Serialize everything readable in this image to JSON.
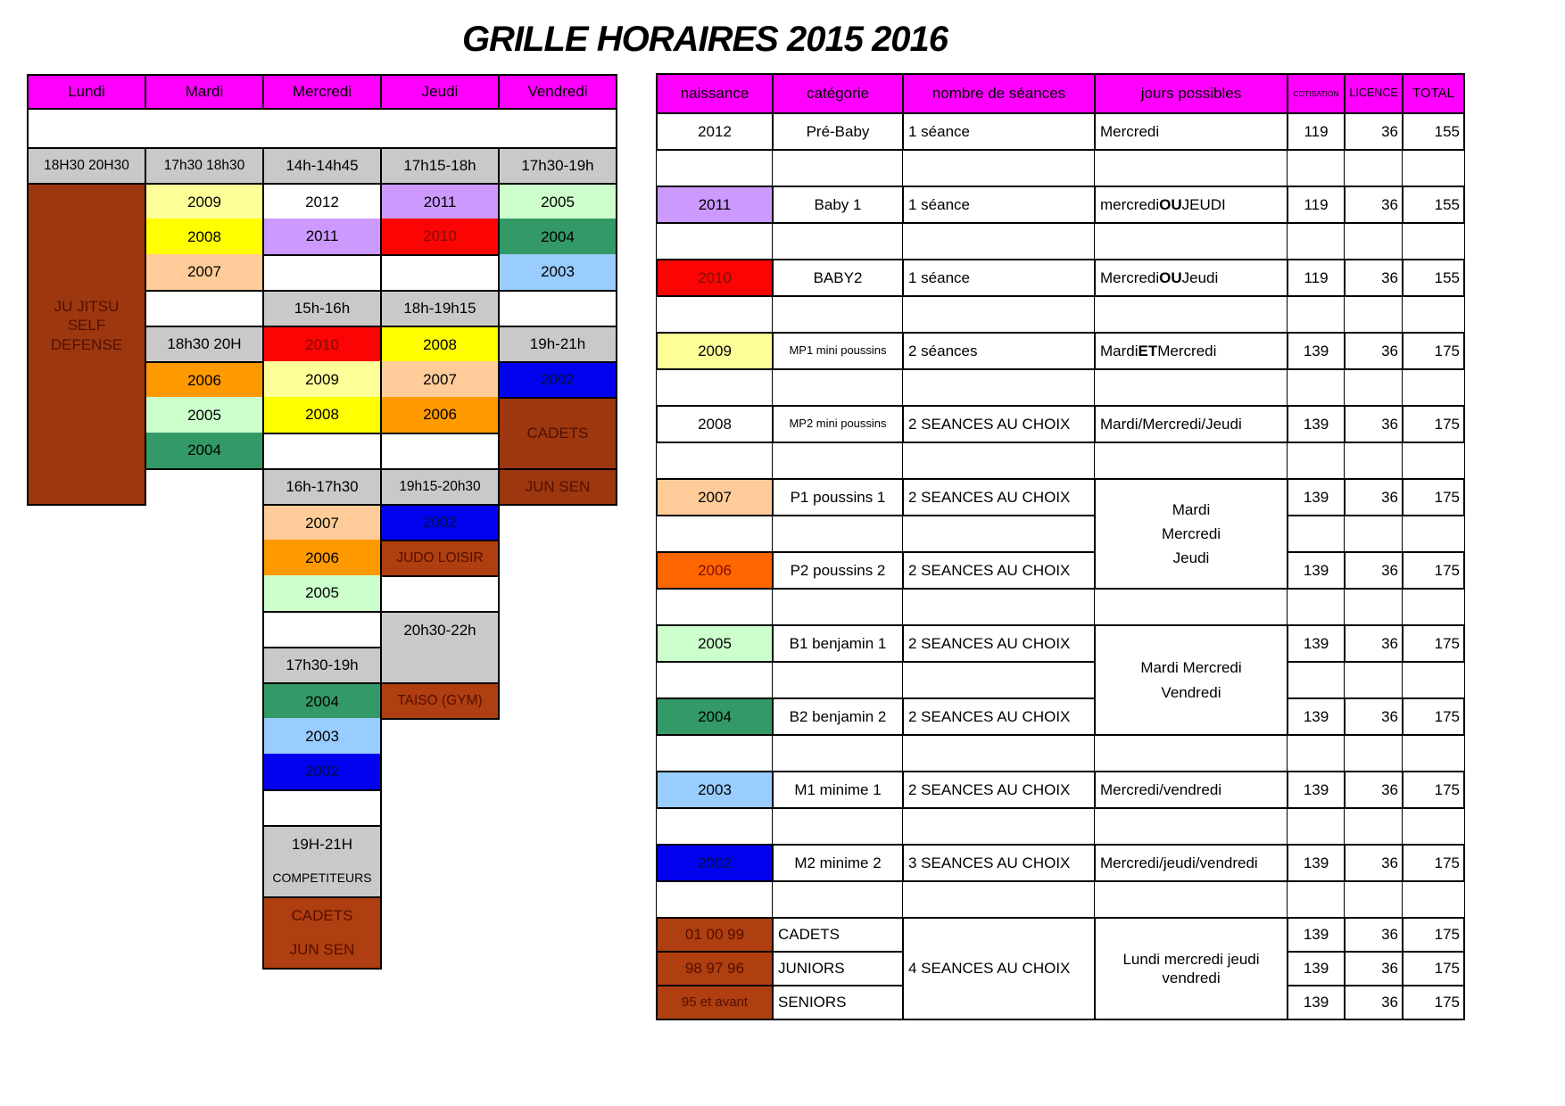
{
  "title": "GRILLE HORAIRES 2015 2016",
  "palette": {
    "magenta": "#FF00FF",
    "grey": "#C9C9C9",
    "white": "#FFFFFF",
    "paleyellow": "#FFFF99",
    "yellow": "#FFFF00",
    "peach": "#FFCC99",
    "orange": "#FF9900",
    "orangered": "#FF6600",
    "palegreen": "#CCFFCC",
    "seagreen": "#339966",
    "lightblue": "#99CCFF",
    "blue": "#0202EF",
    "red": "#FA0404",
    "lavender": "#CC99FF",
    "brown": "#9C3710",
    "brown2": "#AF3E10"
  },
  "left_table": {
    "day_columns": [
      "Lundi",
      "Mardi",
      "Mercredi",
      "Jeudi",
      "Vendredi"
    ],
    "cells": [
      {
        "c": 0,
        "r": "H",
        "bg": "magenta",
        "t": "Lundi",
        "k": "hdr"
      },
      {
        "c": 1,
        "r": "H",
        "bg": "magenta",
        "t": "Mardi",
        "k": "hdr"
      },
      {
        "c": 2,
        "r": "H",
        "bg": "magenta",
        "t": "Mercredi",
        "k": "hdr"
      },
      {
        "c": 3,
        "r": "H",
        "bg": "magenta",
        "t": "Jeudi",
        "k": "hdr"
      },
      {
        "c": 4,
        "r": "H",
        "bg": "magenta",
        "t": "Vendredi",
        "k": "hdr"
      },
      {
        "c": 0,
        "r": "G",
        "cs": 5,
        "bg": "white",
        "t": ""
      },
      {
        "c": 0,
        "r": 0,
        "bg": "grey",
        "t": "18H30 20H30",
        "k": "fit"
      },
      {
        "c": 0,
        "r": 1,
        "s": 9,
        "bg": "brown",
        "t": "JU JITSU\nSELF\nDEFENSE",
        "k": "tbr pb"
      },
      {
        "c": 1,
        "r": 0,
        "bg": "grey",
        "t": "17h30 18h30",
        "k": "fit"
      },
      {
        "c": 1,
        "r": 1,
        "bg": "paleyellow",
        "t": "2009",
        "k": "nb"
      },
      {
        "c": 1,
        "r": 2,
        "bg": "yellow",
        "t": "2008",
        "k": "nt nb"
      },
      {
        "c": 1,
        "r": 3,
        "bg": "peach",
        "t": "2007",
        "k": "nt"
      },
      {
        "c": 1,
        "r": 4,
        "bg": "white",
        "t": ""
      },
      {
        "c": 1,
        "r": 5,
        "bg": "grey",
        "t": "18h30 20H"
      },
      {
        "c": 1,
        "r": 6,
        "bg": "orange",
        "t": "2006",
        "k": "nb"
      },
      {
        "c": 1,
        "r": 7,
        "bg": "palegreen",
        "t": "2005",
        "k": "nt nb"
      },
      {
        "c": 1,
        "r": 8,
        "bg": "seagreen",
        "t": "2004",
        "k": "nt"
      },
      {
        "c": 2,
        "r": 0,
        "bg": "grey",
        "t": "14h-14h45"
      },
      {
        "c": 2,
        "r": 1,
        "bg": "white",
        "t": "2012",
        "k": "nb"
      },
      {
        "c": 2,
        "r": 2,
        "bg": "lavender",
        "t": "2011",
        "k": "nt"
      },
      {
        "c": 2,
        "r": 3,
        "bg": "white",
        "t": ""
      },
      {
        "c": 2,
        "r": 4,
        "bg": "grey",
        "t": "15h-16h"
      },
      {
        "c": 2,
        "r": 5,
        "bg": "red",
        "t": "2010",
        "k": "nb tr"
      },
      {
        "c": 2,
        "r": 6,
        "bg": "paleyellow",
        "t": "2009",
        "k": "nt nb"
      },
      {
        "c": 2,
        "r": 7,
        "bg": "yellow",
        "t": "2008",
        "k": "nt"
      },
      {
        "c": 2,
        "r": 8,
        "bg": "white",
        "t": ""
      },
      {
        "c": 2,
        "r": 9,
        "bg": "grey",
        "t": "16h-17h30"
      },
      {
        "c": 2,
        "r": 10,
        "bg": "peach",
        "t": "2007",
        "k": "nb"
      },
      {
        "c": 2,
        "r": 11,
        "bg": "orange",
        "t": "2006",
        "k": "nt nb"
      },
      {
        "c": 2,
        "r": 12,
        "bg": "palegreen",
        "t": "2005",
        "k": "nt"
      },
      {
        "c": 2,
        "r": 13,
        "bg": "white",
        "t": ""
      },
      {
        "c": 2,
        "r": 14,
        "bg": "grey",
        "t": "17h30-19h"
      },
      {
        "c": 2,
        "r": 15,
        "bg": "seagreen",
        "t": "2004",
        "k": "nb"
      },
      {
        "c": 2,
        "r": 16,
        "bg": "lightblue",
        "t": "2003",
        "k": "nt nb"
      },
      {
        "c": 2,
        "r": 17,
        "bg": "blue",
        "t": "2002",
        "k": "nt tb"
      },
      {
        "c": 2,
        "r": 18,
        "bg": "white",
        "t": ""
      },
      {
        "c": 2,
        "r": 19,
        "bg": "grey",
        "t": "19H-21H",
        "k": "nb"
      },
      {
        "c": 2,
        "r": 20,
        "bg": "grey",
        "t": "COMPETITEURS",
        "k": "nt small"
      },
      {
        "c": 2,
        "r": 21,
        "bg": "brown2",
        "t": "CADETS",
        "k": "nb tbr"
      },
      {
        "c": 2,
        "r": 22,
        "bg": "brown2",
        "t": "JUN SEN",
        "k": "nt tbr"
      },
      {
        "c": 3,
        "r": 0,
        "bg": "grey",
        "t": "17h15-18h"
      },
      {
        "c": 3,
        "r": 1,
        "bg": "lavender",
        "t": "2011",
        "k": "nb"
      },
      {
        "c": 3,
        "r": 2,
        "bg": "red",
        "t": "2010",
        "k": "nt tr"
      },
      {
        "c": 3,
        "r": 3,
        "bg": "white",
        "t": ""
      },
      {
        "c": 3,
        "r": 4,
        "bg": "grey",
        "t": "18h-19h15"
      },
      {
        "c": 3,
        "r": 5,
        "bg": "yellow",
        "t": "2008",
        "k": "nb"
      },
      {
        "c": 3,
        "r": 6,
        "bg": "peach",
        "t": "2007",
        "k": "nt nb"
      },
      {
        "c": 3,
        "r": 7,
        "bg": "orange",
        "t": "2006",
        "k": "nt"
      },
      {
        "c": 3,
        "r": 8,
        "bg": "white",
        "t": ""
      },
      {
        "c": 3,
        "r": 9,
        "bg": "grey",
        "t": "19h15-20h30",
        "k": "fit"
      },
      {
        "c": 3,
        "r": 10,
        "bg": "blue",
        "t": "2002",
        "k": "tb"
      },
      {
        "c": 3,
        "r": 11,
        "bg": "brown2",
        "t": "JUDO LOISIR",
        "k": "tbr fit"
      },
      {
        "c": 3,
        "r": 12,
        "bg": "white",
        "t": ""
      },
      {
        "c": 3,
        "r": 13,
        "s": 2,
        "bg": "grey",
        "t": "20h30-22h",
        "k": "vtop"
      },
      {
        "c": 3,
        "r": 15,
        "bg": "brown2",
        "t": "TAISO (GYM)",
        "k": "tbr fit"
      },
      {
        "c": 4,
        "r": 0,
        "bg": "grey",
        "t": "17h30-19h"
      },
      {
        "c": 4,
        "r": 1,
        "bg": "palegreen",
        "t": "2005",
        "k": "nb"
      },
      {
        "c": 4,
        "r": 2,
        "bg": "seagreen",
        "t": "2004",
        "k": "nt nb"
      },
      {
        "c": 4,
        "r": 3,
        "bg": "lightblue",
        "t": "2003",
        "k": "nt"
      },
      {
        "c": 4,
        "r": 4,
        "bg": "white",
        "t": ""
      },
      {
        "c": 4,
        "r": 5,
        "bg": "grey",
        "t": "19h-21h"
      },
      {
        "c": 4,
        "r": 6,
        "bg": "blue",
        "t": "2002",
        "k": "tb"
      },
      {
        "c": 4,
        "r": 7,
        "s": 2,
        "bg": "brown",
        "t": "CADETS",
        "k": "tbr"
      },
      {
        "c": 4,
        "r": 9,
        "bg": "brown",
        "t": "JUN SEN",
        "k": "tbr"
      }
    ]
  },
  "right_table": {
    "column_names": [
      "naissance",
      "categorie",
      "seances",
      "jours",
      "cotisation",
      "licence",
      "total"
    ],
    "cells": [
      {
        "c": 0,
        "r": "H",
        "bg": "magenta",
        "t": "naissance",
        "k": "hdr"
      },
      {
        "c": 1,
        "r": "H",
        "bg": "magenta",
        "t": "catégorie",
        "k": "hdr"
      },
      {
        "c": 2,
        "r": "H",
        "bg": "magenta",
        "t": "nombre de séances",
        "k": "hdr"
      },
      {
        "c": 3,
        "r": "H",
        "bg": "magenta",
        "t": "jours possibles",
        "k": "hdr"
      },
      {
        "c": 4,
        "r": "H",
        "bg": "magenta",
        "t": "COTISATION",
        "k": "hdr xs"
      },
      {
        "c": 5,
        "r": "H",
        "bg": "magenta",
        "t": "LICENCE",
        "k": "hdr s12"
      },
      {
        "c": 6,
        "r": "H",
        "bg": "magenta",
        "t": "TOTAL",
        "k": "hdr s15"
      },
      {
        "c": 0,
        "r": 1,
        "bg": "white",
        "t": "2012"
      },
      {
        "c": 1,
        "r": 1,
        "bg": "white",
        "t": "Pré-Baby"
      },
      {
        "c": 2,
        "r": 1,
        "bg": "white",
        "t": "1 séance",
        "k": "al"
      },
      {
        "c": 3,
        "r": 1,
        "bg": "white",
        "t": "Mercredi",
        "k": "al"
      },
      {
        "c": 4,
        "r": 1,
        "bg": "white",
        "t": "119"
      },
      {
        "c": 5,
        "r": 1,
        "bg": "white",
        "t": "36",
        "k": "numr"
      },
      {
        "c": 6,
        "r": 1,
        "bg": "white",
        "t": "155",
        "k": "numr"
      },
      {
        "c": 0,
        "r": 3,
        "bg": "lavender",
        "t": "2011"
      },
      {
        "c": 1,
        "r": 3,
        "bg": "white",
        "t": "Baby 1"
      },
      {
        "c": 2,
        "r": 3,
        "bg": "white",
        "t": "1 séance",
        "k": "al"
      },
      {
        "c": 3,
        "r": 3,
        "bg": "white",
        "t": "mercredi **OU** JEUDI",
        "k": "al"
      },
      {
        "c": 4,
        "r": 3,
        "bg": "white",
        "t": "119"
      },
      {
        "c": 5,
        "r": 3,
        "bg": "white",
        "t": "36",
        "k": "numr"
      },
      {
        "c": 6,
        "r": 3,
        "bg": "white",
        "t": "155",
        "k": "numr"
      },
      {
        "c": 0,
        "r": 5,
        "bg": "red",
        "t": "2010",
        "k": "tr"
      },
      {
        "c": 1,
        "r": 5,
        "bg": "white",
        "t": "BABY2"
      },
      {
        "c": 2,
        "r": 5,
        "bg": "white",
        "t": "1 séance",
        "k": "al"
      },
      {
        "c": 3,
        "r": 5,
        "bg": "white",
        "t": "Mercredi **OU** Jeudi",
        "k": "al"
      },
      {
        "c": 4,
        "r": 5,
        "bg": "white",
        "t": "119"
      },
      {
        "c": 5,
        "r": 5,
        "bg": "white",
        "t": "36",
        "k": "numr"
      },
      {
        "c": 6,
        "r": 5,
        "bg": "white",
        "t": "155",
        "k": "numr"
      },
      {
        "c": 0,
        "r": 7,
        "bg": "paleyellow",
        "t": "2009"
      },
      {
        "c": 1,
        "r": 7,
        "bg": "white",
        "t": "MP1 mini poussins",
        "k": "sm"
      },
      {
        "c": 2,
        "r": 7,
        "bg": "white",
        "t": "2 séances",
        "k": "al"
      },
      {
        "c": 3,
        "r": 7,
        "bg": "white",
        "t": "Mardi **ET** Mercredi",
        "k": "al"
      },
      {
        "c": 4,
        "r": 7,
        "bg": "white",
        "t": "139"
      },
      {
        "c": 5,
        "r": 7,
        "bg": "white",
        "t": "36",
        "k": "numr"
      },
      {
        "c": 6,
        "r": 7,
        "bg": "white",
        "t": "175",
        "k": "numr"
      },
      {
        "c": 0,
        "r": 9,
        "bg": "white",
        "t": "2008"
      },
      {
        "c": 1,
        "r": 9,
        "bg": "white",
        "t": "MP2 mini poussins",
        "k": "sm"
      },
      {
        "c": 2,
        "r": 9,
        "bg": "white",
        "t": "2 SEANCES AU CHOIX",
        "k": "al"
      },
      {
        "c": 3,
        "r": 9,
        "bg": "white",
        "t": "Mardi/Mercredi/Jeudi",
        "k": "al"
      },
      {
        "c": 4,
        "r": 9,
        "bg": "white",
        "t": "139"
      },
      {
        "c": 5,
        "r": 9,
        "bg": "white",
        "t": "36",
        "k": "numr"
      },
      {
        "c": 6,
        "r": 9,
        "bg": "white",
        "t": "175",
        "k": "numr"
      },
      {
        "c": 0,
        "r": 11,
        "bg": "peach",
        "t": "2007"
      },
      {
        "c": 1,
        "r": 11,
        "bg": "white",
        "t": "P1 poussins 1"
      },
      {
        "c": 2,
        "r": 11,
        "bg": "white",
        "t": "2 SEANCES AU CHOIX",
        "k": "al"
      },
      {
        "c": 3,
        "r": 11,
        "s": 3,
        "bg": "white",
        "t": "Mardi\nMercredi\nJeudi",
        "k": "lh"
      },
      {
        "c": 4,
        "r": 11,
        "bg": "white",
        "t": "139"
      },
      {
        "c": 5,
        "r": 11,
        "bg": "white",
        "t": "36",
        "k": "numr"
      },
      {
        "c": 6,
        "r": 11,
        "bg": "white",
        "t": "175",
        "k": "numr"
      },
      {
        "c": 0,
        "r": 13,
        "bg": "orangered",
        "t": "2006",
        "k": "tr"
      },
      {
        "c": 1,
        "r": 13,
        "bg": "white",
        "t": "P2 poussins 2"
      },
      {
        "c": 2,
        "r": 13,
        "bg": "white",
        "t": "2 SEANCES AU CHOIX",
        "k": "al"
      },
      {
        "c": 4,
        "r": 13,
        "bg": "white",
        "t": "139"
      },
      {
        "c": 5,
        "r": 13,
        "bg": "white",
        "t": "36",
        "k": "numr"
      },
      {
        "c": 6,
        "r": 13,
        "bg": "white",
        "t": "175",
        "k": "numr"
      },
      {
        "c": 0,
        "r": 15,
        "bg": "palegreen",
        "t": "2005"
      },
      {
        "c": 1,
        "r": 15,
        "bg": "white",
        "t": "B1 benjamin 1"
      },
      {
        "c": 2,
        "r": 15,
        "bg": "white",
        "t": "2 SEANCES AU CHOIX",
        "k": "al"
      },
      {
        "c": 3,
        "r": 15,
        "s": 3,
        "bg": "white",
        "t": "Mardi Mercredi\nVendredi",
        "k": "lh"
      },
      {
        "c": 4,
        "r": 15,
        "bg": "white",
        "t": "139"
      },
      {
        "c": 5,
        "r": 15,
        "bg": "white",
        "t": "36",
        "k": "numr"
      },
      {
        "c": 6,
        "r": 15,
        "bg": "white",
        "t": "175",
        "k": "numr"
      },
      {
        "c": 0,
        "r": 17,
        "bg": "seagreen",
        "t": "2004"
      },
      {
        "c": 1,
        "r": 17,
        "bg": "white",
        "t": "B2 benjamin 2"
      },
      {
        "c": 2,
        "r": 17,
        "bg": "white",
        "t": "2 SEANCES AU CHOIX",
        "k": "al"
      },
      {
        "c": 4,
        "r": 17,
        "bg": "white",
        "t": "139"
      },
      {
        "c": 5,
        "r": 17,
        "bg": "white",
        "t": "36",
        "k": "numr"
      },
      {
        "c": 6,
        "r": 17,
        "bg": "white",
        "t": "175",
        "k": "numr"
      },
      {
        "c": 0,
        "r": 19,
        "bg": "lightblue",
        "t": "2003"
      },
      {
        "c": 1,
        "r": 19,
        "bg": "white",
        "t": "M1 minime 1"
      },
      {
        "c": 2,
        "r": 19,
        "bg": "white",
        "t": "2 SEANCES AU CHOIX",
        "k": "al"
      },
      {
        "c": 3,
        "r": 19,
        "bg": "white",
        "t": "Mercredi/vendredi",
        "k": "al"
      },
      {
        "c": 4,
        "r": 19,
        "bg": "white",
        "t": "139"
      },
      {
        "c": 5,
        "r": 19,
        "bg": "white",
        "t": "36",
        "k": "numr"
      },
      {
        "c": 6,
        "r": 19,
        "bg": "white",
        "t": "175",
        "k": "numr"
      },
      {
        "c": 0,
        "r": 21,
        "bg": "blue",
        "t": "2002",
        "k": "tb"
      },
      {
        "c": 1,
        "r": 21,
        "bg": "white",
        "t": "M2 minime 2"
      },
      {
        "c": 2,
        "r": 21,
        "bg": "white",
        "t": "3 SEANCES AU CHOIX",
        "k": "al"
      },
      {
        "c": 3,
        "r": 21,
        "bg": "white",
        "t": "Mercredi/jeudi/vendredi",
        "k": "al"
      },
      {
        "c": 4,
        "r": 21,
        "bg": "white",
        "t": "139"
      },
      {
        "c": 5,
        "r": 21,
        "bg": "white",
        "t": "36",
        "k": "numr"
      },
      {
        "c": 6,
        "r": 21,
        "bg": "white",
        "t": "175",
        "k": "numr"
      },
      {
        "c": 0,
        "r": 23,
        "bg": "brown2",
        "t": "01 00 99",
        "k": "tbr"
      },
      {
        "c": 1,
        "r": 23,
        "bg": "white",
        "t": "CADETS",
        "k": "al"
      },
      {
        "c": 2,
        "r": 23,
        "s": 3,
        "bg": "white",
        "t": "4 SEANCES AU CHOIX",
        "k": "al"
      },
      {
        "c": 3,
        "r": 23,
        "s": 3,
        "bg": "white",
        "t": "Lundi mercredi jeudi\nvendredi"
      },
      {
        "c": 4,
        "r": 23,
        "bg": "white",
        "t": "139"
      },
      {
        "c": 5,
        "r": 23,
        "bg": "white",
        "t": "36",
        "k": "numr"
      },
      {
        "c": 6,
        "r": 23,
        "bg": "white",
        "t": "175",
        "k": "numr"
      },
      {
        "c": 0,
        "r": 24,
        "bg": "brown2",
        "t": "98 97 96",
        "k": "tbr"
      },
      {
        "c": 1,
        "r": 24,
        "bg": "white",
        "t": "JUNIORS",
        "k": "al"
      },
      {
        "c": 4,
        "r": 24,
        "bg": "white",
        "t": "139"
      },
      {
        "c": 5,
        "r": 24,
        "bg": "white",
        "t": "36",
        "k": "numr"
      },
      {
        "c": 6,
        "r": 24,
        "bg": "white",
        "t": "175",
        "k": "numr"
      },
      {
        "c": 0,
        "r": 25,
        "bg": "brown2",
        "t": "95 et avant",
        "k": "tbr s15"
      },
      {
        "c": 1,
        "r": 25,
        "bg": "white",
        "t": "SENIORS",
        "k": "al"
      },
      {
        "c": 4,
        "r": 25,
        "bg": "white",
        "t": "139"
      },
      {
        "c": 5,
        "r": 25,
        "bg": "white",
        "t": "36",
        "k": "numr"
      },
      {
        "c": 6,
        "r": 25,
        "bg": "white",
        "t": "175",
        "k": "numr"
      }
    ],
    "empty_rows": [
      {
        "r": 2
      },
      {
        "r": 4
      },
      {
        "r": 6
      },
      {
        "r": 8
      },
      {
        "r": 10
      },
      {
        "r": 12,
        "skip": [
          3
        ]
      },
      {
        "r": 14
      },
      {
        "r": 16,
        "skip": [
          3
        ]
      },
      {
        "r": 18
      },
      {
        "r": 20
      },
      {
        "r": 22
      }
    ]
  }
}
